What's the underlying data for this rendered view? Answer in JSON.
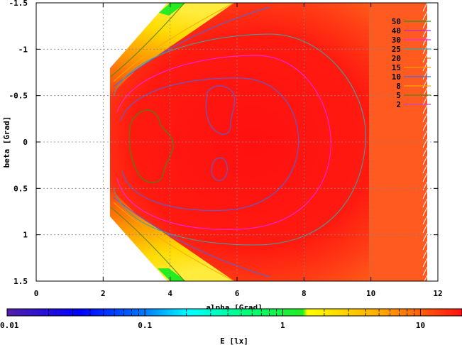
{
  "chart_data": {
    "type": "heatmap",
    "xlabel": "alpha [Grad]",
    "ylabel": "beta [Grad]",
    "xlim": [
      0,
      12
    ],
    "ylim": [
      -1.5,
      1.5
    ],
    "y_inverted": true,
    "grid": true,
    "x_ticks": [
      0,
      2,
      4,
      6,
      8,
      10,
      12
    ],
    "y_ticks": [
      -1.5,
      -1,
      -0.5,
      0,
      0.5,
      1,
      1.5
    ],
    "x_tick_labels": [
      "0",
      "2",
      "4",
      "6",
      "8",
      "10",
      "12"
    ],
    "y_tick_labels": [
      "-1.5",
      "-1",
      "-0.5",
      "0",
      "0.5",
      "1",
      "1.5"
    ],
    "colorbar": {
      "label": "E [lx]",
      "scale": "log",
      "range": [
        0.01,
        20
      ],
      "tick_labels": [
        "0.01",
        "0.1",
        "1",
        "10"
      ],
      "tick_values": [
        0.01,
        0.1,
        1,
        10
      ]
    },
    "legend_position": "top-right",
    "contour_levels": [
      {
        "label": "50",
        "color": "#1a9e1a"
      },
      {
        "label": "40",
        "color": "#cc22cc"
      },
      {
        "label": "30",
        "color": "#ff22ff"
      },
      {
        "label": "25",
        "color": "#33aaaa"
      },
      {
        "label": "20",
        "color": "#ff6600"
      },
      {
        "label": "15",
        "color": "#ff9900"
      },
      {
        "label": "10",
        "color": "#4466ee"
      },
      {
        "label": "8",
        "color": "#ffaa00"
      },
      {
        "label": "5",
        "color": "#558800"
      },
      {
        "label": "2",
        "color": "#cc44cc"
      }
    ]
  },
  "colors": {
    "low": "#4b1fb0",
    "mid_blue": "#0044ff",
    "cyan": "#00ffff",
    "green": "#22ee22",
    "yellow": "#ffff00",
    "orange": "#ff8800",
    "high": "#ff1010"
  }
}
